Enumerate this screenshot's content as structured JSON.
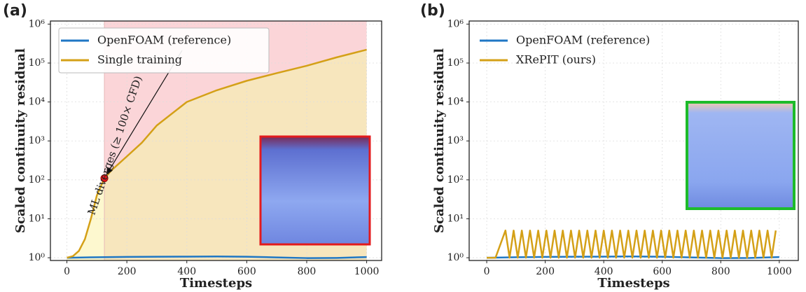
{
  "chart_data": [
    {
      "type": "line",
      "panel_label": "(a)",
      "y_label": "Scaled continuity residual",
      "x_label": "Timesteps",
      "y_scale": "log",
      "grid": true,
      "legend": "upper left",
      "legend_frame": true,
      "xlim": [
        -55,
        1050
      ],
      "xticks": [
        0,
        200,
        400,
        600,
        800,
        1000
      ],
      "ylim": [
        0.85,
        1200000
      ],
      "yticks": [
        {
          "value": 1,
          "label": "10⁰"
        },
        {
          "value": 10,
          "label": "10¹"
        },
        {
          "value": 100,
          "label": "10²"
        },
        {
          "value": 1000,
          "label": "10³"
        },
        {
          "value": 10000,
          "label": "10⁴"
        },
        {
          "value": 100000,
          "label": "10⁵"
        },
        {
          "value": 1000000,
          "label": "10⁶"
        }
      ],
      "series": [
        {
          "name": "OpenFOAM (reference)",
          "color": "#1f77c4",
          "x": [
            0,
            100,
            200,
            300,
            400,
            500,
            600,
            700,
            800,
            900,
            1000
          ],
          "values": [
            1.0,
            1.03,
            1.05,
            1.06,
            1.07,
            1.08,
            1.06,
            1.02,
            0.98,
            0.99,
            1.04
          ]
        },
        {
          "name": "Single training",
          "color": "#d4a017",
          "x": [
            0,
            20,
            40,
            60,
            80,
            100,
            125,
            150,
            200,
            250,
            300,
            400,
            500,
            600,
            700,
            800,
            900,
            1000
          ],
          "values": [
            1,
            1.1,
            1.5,
            3,
            10,
            40,
            110,
            180,
            400,
            900,
            2500,
            10000,
            20000,
            35000,
            55000,
            85000,
            140000,
            220000
          ]
        }
      ],
      "divergence_point": {
        "x": 125,
        "y": 110,
        "color": "#e31a1c"
      },
      "annotation": "ML diverges (≥ 100× CFD)"
    },
    {
      "type": "line",
      "panel_label": "(b)",
      "y_label": "Scaled continuity residual",
      "x_label": "Timesteps",
      "y_scale": "log",
      "grid": true,
      "legend": "upper left",
      "legend_frame": false,
      "xlim": [
        -60,
        1065
      ],
      "xticks": [
        0,
        200,
        400,
        600,
        800,
        1000
      ],
      "ylim": [
        0.85,
        1200000
      ],
      "yticks": [
        {
          "value": 1,
          "label": "10⁰"
        },
        {
          "value": 10,
          "label": "10¹"
        },
        {
          "value": 100,
          "label": "10²"
        },
        {
          "value": 1000,
          "label": "10³"
        },
        {
          "value": 10000,
          "label": "10⁴"
        },
        {
          "value": 100000,
          "label": "10⁵"
        },
        {
          "value": 1000000,
          "label": "10⁶"
        }
      ],
      "series": [
        {
          "name": "OpenFOAM (reference)",
          "color": "#1f77c4",
          "x": [
            0,
            100,
            200,
            300,
            400,
            500,
            600,
            700,
            800,
            900,
            1000
          ],
          "values": [
            1.0,
            1.03,
            1.05,
            1.06,
            1.07,
            1.08,
            1.06,
            1.02,
            0.98,
            0.99,
            1.04
          ]
        },
        {
          "name": "XRePIT (ours)",
          "color": "#d4a017",
          "x": [
            0,
            30,
            64,
            78,
            92,
            106,
            120,
            134,
            148,
            162,
            176,
            190,
            204,
            218,
            232,
            246,
            260,
            274,
            288,
            302,
            316,
            330,
            344,
            358,
            372,
            386,
            400,
            414,
            428,
            442,
            456,
            470,
            484,
            498,
            512,
            526,
            540,
            554,
            568,
            582,
            596,
            610,
            624,
            638,
            652,
            666,
            680,
            694,
            708,
            722,
            736,
            750,
            764,
            778,
            792,
            806,
            820,
            834,
            848,
            862,
            876,
            890,
            904,
            918,
            932,
            946,
            960,
            974,
            988
          ],
          "values": [
            1,
            1,
            5,
            1,
            5,
            1,
            5,
            1,
            5,
            1,
            5,
            1,
            5,
            1,
            5,
            1,
            5,
            1,
            5,
            1,
            5,
            1,
            5,
            1,
            5,
            1,
            5,
            1,
            5,
            1,
            5,
            1,
            5,
            1,
            5,
            1,
            5,
            1,
            5,
            1,
            5,
            1,
            5,
            1,
            5,
            1,
            5,
            1,
            5,
            1,
            5,
            1,
            5,
            1,
            5,
            1,
            5,
            1,
            5,
            1,
            5,
            1,
            5,
            1,
            5,
            1,
            5,
            1,
            5
          ]
        }
      ]
    }
  ]
}
